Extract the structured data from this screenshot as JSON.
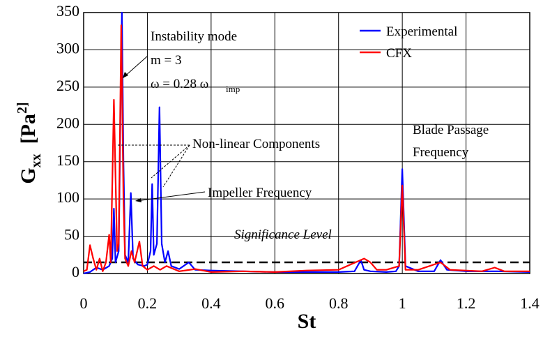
{
  "chart_data": {
    "type": "line",
    "xlabel": "St",
    "ylabel": {
      "main": "G",
      "sub": "xx",
      "unit": "[Pa",
      "sup": "2]"
    },
    "xlim": [
      0,
      1.4
    ],
    "ylim": [
      0,
      350
    ],
    "xticks": [
      0,
      0.2,
      0.4,
      0.6,
      0.8,
      1,
      1.2,
      1.4
    ],
    "yticks": [
      0,
      50,
      100,
      150,
      200,
      250,
      300,
      350
    ],
    "grid": true,
    "legend": "upper right",
    "significance_level": 15,
    "annotations": [
      {
        "text": "Instability mode"
      },
      {
        "text": "m = 3"
      },
      {
        "text": "ω = 0.28 ω"
      },
      {
        "text": "imp"
      },
      {
        "text": "Non-linear Components"
      },
      {
        "text": "Blade Passage"
      },
      {
        "text": "Frequency"
      },
      {
        "text": "Impeller Frequency"
      },
      {
        "text": "Significance Level"
      }
    ],
    "series": [
      {
        "name": "Experimental",
        "color": "#0000ff",
        "x": [
          0,
          0.02,
          0.04,
          0.06,
          0.08,
          0.09,
          0.095,
          0.1,
          0.11,
          0.115,
          0.12,
          0.125,
          0.13,
          0.14,
          0.148,
          0.155,
          0.17,
          0.19,
          0.2,
          0.21,
          0.215,
          0.22,
          0.23,
          0.238,
          0.245,
          0.255,
          0.265,
          0.275,
          0.3,
          0.33,
          0.35,
          0.4,
          0.5,
          0.6,
          0.7,
          0.8,
          0.85,
          0.87,
          0.88,
          0.9,
          0.95,
          0.98,
          0.99,
          1.0,
          1.01,
          1.05,
          1.1,
          1.12,
          1.14,
          1.2,
          1.3,
          1.4
        ],
        "values": [
          0,
          2,
          8,
          5,
          10,
          20,
          87,
          15,
          30,
          200,
          350,
          150,
          25,
          15,
          108,
          20,
          12,
          10,
          12,
          30,
          120,
          25,
          40,
          223,
          40,
          15,
          30,
          10,
          6,
          15,
          5,
          4,
          3,
          2,
          2,
          2,
          3,
          18,
          5,
          3,
          2,
          3,
          10,
          140,
          10,
          3,
          3,
          18,
          5,
          3,
          3,
          2
        ]
      },
      {
        "name": "CFX",
        "color": "#ff0000",
        "x": [
          0,
          0.01,
          0.02,
          0.03,
          0.04,
          0.05,
          0.06,
          0.07,
          0.08,
          0.085,
          0.095,
          0.105,
          0.11,
          0.118,
          0.125,
          0.13,
          0.14,
          0.15,
          0.16,
          0.175,
          0.185,
          0.2,
          0.22,
          0.24,
          0.26,
          0.3,
          0.35,
          0.4,
          0.5,
          0.6,
          0.7,
          0.8,
          0.88,
          0.9,
          0.92,
          0.95,
          0.99,
          1.0,
          1.01,
          1.05,
          1.12,
          1.15,
          1.25,
          1.29,
          1.32,
          1.4
        ],
        "values": [
          3,
          5,
          38,
          20,
          5,
          20,
          3,
          15,
          52,
          15,
          233,
          30,
          40,
          333,
          100,
          20,
          10,
          30,
          15,
          43,
          10,
          5,
          10,
          5,
          10,
          3,
          6,
          2,
          3,
          2,
          4,
          5,
          20,
          15,
          5,
          5,
          10,
          118,
          5,
          5,
          15,
          5,
          3,
          8,
          3,
          3
        ]
      }
    ]
  }
}
